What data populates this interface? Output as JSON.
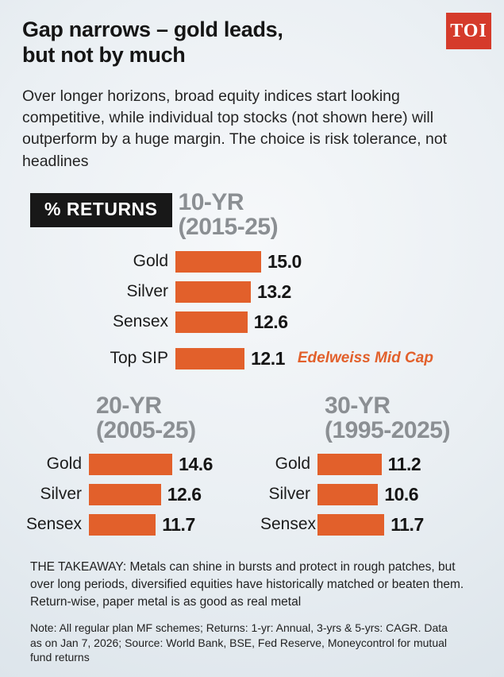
{
  "header": {
    "title_line1": "Gap narrows – gold leads,",
    "title_line2": "but not by much",
    "logo": "TOI",
    "intro": "Over longer horizons, broad equity indices start looking competitive, while individual top stocks (not shown here) will outperform by a huge margin. The choice is risk tolerance, not headlines"
  },
  "badge_label": "% RETURNS",
  "chart_data": [
    {
      "type": "bar",
      "title": "10-YR",
      "subtitle": "(2015-25)",
      "unit": "% returns (CAGR)",
      "categories": [
        "Gold",
        "Silver",
        "Sensex",
        "Top SIP"
      ],
      "values": [
        15.0,
        13.2,
        12.6,
        12.1
      ],
      "value_labels": [
        "15.0",
        "13.2",
        "12.6",
        "12.1"
      ],
      "annotations": {
        "3": "Edelweiss Mid Cap"
      }
    },
    {
      "type": "bar",
      "title": "20-YR",
      "subtitle": "(2005-25)",
      "unit": "% returns (CAGR)",
      "categories": [
        "Gold",
        "Silver",
        "Sensex"
      ],
      "values": [
        14.6,
        12.6,
        11.7
      ],
      "value_labels": [
        "14.6",
        "12.6",
        "11.7"
      ]
    },
    {
      "type": "bar",
      "title": "30-YR",
      "subtitle": "(1995-2025)",
      "unit": "% returns (CAGR)",
      "categories": [
        "Gold",
        "Silver",
        "Sensex"
      ],
      "values": [
        11.2,
        10.6,
        11.7
      ],
      "value_labels": [
        "11.2",
        "10.6",
        "11.7"
      ]
    }
  ],
  "footer": {
    "takeaway": "THE TAKEAWAY: Metals can shine in bursts and protect in rough patches, but over long periods, diversified equities have historically matched or beaten them. Return-wise, paper metal is as good as real metal",
    "note": "Note: All regular plan MF schemes; Returns: 1-yr: Annual, 3-yrs & 5-yrs: CAGR. Data as on Jan 7, 2026; Source: World Bank, BSE, Fed Reserve, Moneycontrol for mutual fund returns"
  },
  "colors": {
    "bar_orange": "#e2602b",
    "badge_black": "#181818",
    "logo_red": "#d53b2b",
    "period_gray": "#8b8f93",
    "background": "#edf1f4"
  }
}
